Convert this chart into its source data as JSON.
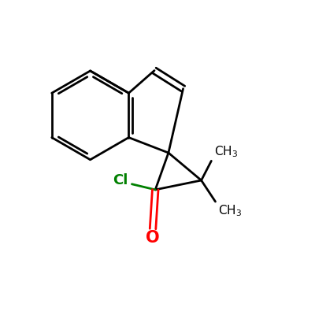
{
  "background": "#ffffff",
  "bond_color": "#000000",
  "carbonyl_color": "#ff0000",
  "chlorine_color": "#008000",
  "text_color": "#000000",
  "lw": 2.0
}
